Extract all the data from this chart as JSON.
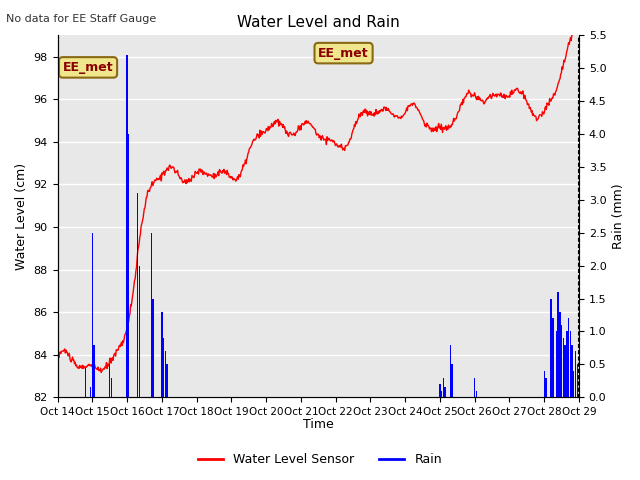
{
  "title": "Water Level and Rain",
  "top_left_text": "No data for EE Staff Gauge",
  "annotation_text": "EE_met",
  "xlabel": "Time",
  "ylabel_left": "Water Level (cm)",
  "ylabel_right": "Rain (mm)",
  "ylim_left": [
    82,
    99
  ],
  "ylim_right": [
    0.0,
    5.5
  ],
  "yticks_left": [
    82,
    84,
    86,
    88,
    90,
    92,
    94,
    96,
    98
  ],
  "yticks_right": [
    0.0,
    0.5,
    1.0,
    1.5,
    2.0,
    2.5,
    3.0,
    3.5,
    4.0,
    4.5,
    5.0,
    5.5
  ],
  "xtick_labels": [
    "Oct 14",
    "Oct 15",
    "Oct 16",
    "Oct 17",
    "Oct 18",
    "Oct 19",
    "Oct 20",
    "Oct 21",
    "Oct 22",
    "Oct 23",
    "Oct 24",
    "Oct 25",
    "Oct 26",
    "Oct 27",
    "Oct 28",
    "Oct 29"
  ],
  "water_color": "red",
  "rain_color": "blue",
  "bg_color": "#e8e8e8",
  "legend_labels": [
    "Water Level Sensor",
    "Rain"
  ]
}
